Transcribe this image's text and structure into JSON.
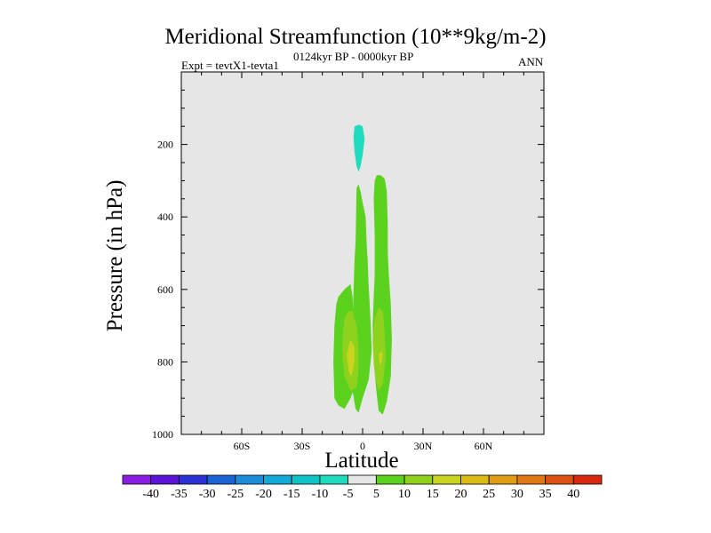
{
  "chart_data": {
    "type": "contour",
    "title": "Meridional Streamfunction (10**9kg/m-2)",
    "subtitle": "0124kyr BP - 0000kyr BP",
    "experiment": "Expt = tevtX1-tevta1",
    "season": "ANN",
    "xlabel": "Latitude",
    "ylabel": "Pressure (in hPa)",
    "xlim": [
      -90,
      90
    ],
    "ylim": [
      1000,
      0
    ],
    "x_ticks": [
      {
        "value": -60,
        "label": "60S"
      },
      {
        "value": -30,
        "label": "30S"
      },
      {
        "value": 0,
        "label": "0"
      },
      {
        "value": 30,
        "label": "30N"
      },
      {
        "value": 60,
        "label": "60N"
      }
    ],
    "y_ticks": [
      {
        "value": 200,
        "label": "200"
      },
      {
        "value": 400,
        "label": "400"
      },
      {
        "value": 600,
        "label": "600"
      },
      {
        "value": 800,
        "label": "800"
      },
      {
        "value": 1000,
        "label": "1000"
      }
    ],
    "background_color": "#e6e6e6",
    "colorbar": {
      "labels": [
        "-40",
        "-35",
        "-30",
        "-25",
        "-20",
        "-15",
        "-10",
        "-5",
        "5",
        "10",
        "15",
        "20",
        "25",
        "30",
        "35",
        "40"
      ],
      "colors": [
        "#8a1ee0",
        "#5a14d8",
        "#2a32d6",
        "#1a64d6",
        "#1a8cd8",
        "#12aad8",
        "#10c4c6",
        "#1edcbc",
        "#e6e6e6",
        "#5ad21e",
        "#8ed21e",
        "#c8d41e",
        "#dcbc14",
        "#e09c14",
        "#e07814",
        "#dc5014",
        "#d82810"
      ]
    },
    "regions": [
      {
        "name": "positive-5-10-upper",
        "color": "#5ad21e",
        "points": [
          [
            -3.5,
            470
          ],
          [
            -3,
            320
          ],
          [
            -2,
            310
          ],
          [
            -1,
            330
          ],
          [
            0,
            360
          ],
          [
            1.5,
            400
          ],
          [
            2,
            470
          ],
          [
            2.5,
            520
          ],
          [
            3,
            590
          ],
          [
            4,
            695
          ],
          [
            4.5,
            770
          ],
          [
            3,
            850
          ],
          [
            0,
            900
          ],
          [
            -2,
            940
          ],
          [
            -3.5,
            930
          ],
          [
            -5,
            880
          ],
          [
            -5.5,
            800
          ],
          [
            -5,
            700
          ],
          [
            -4.5,
            600
          ],
          [
            -4,
            520
          ]
        ]
      },
      {
        "name": "positive-5-10-north",
        "color": "#5ad21e",
        "points": [
          [
            6,
            300
          ],
          [
            7,
            285
          ],
          [
            9,
            285
          ],
          [
            11,
            295
          ],
          [
            12,
            330
          ],
          [
            12.5,
            420
          ],
          [
            12.5,
            500
          ],
          [
            13,
            560
          ],
          [
            14,
            640
          ],
          [
            14.5,
            740
          ],
          [
            14,
            840
          ],
          [
            12,
            910
          ],
          [
            10,
            945
          ],
          [
            8,
            935
          ],
          [
            7,
            890
          ],
          [
            5.5,
            800
          ],
          [
            5,
            700
          ],
          [
            5.5,
            620
          ],
          [
            6,
            560
          ],
          [
            6,
            450
          ],
          [
            5.5,
            350
          ]
        ]
      },
      {
        "name": "positive-5-10-south",
        "color": "#5ad21e",
        "points": [
          [
            -13,
            640
          ],
          [
            -12,
            620
          ],
          [
            -9,
            600
          ],
          [
            -6,
            585
          ],
          [
            -5,
            620
          ],
          [
            -4.5,
            700
          ],
          [
            -5,
            800
          ],
          [
            -4,
            870
          ],
          [
            -6,
            900
          ],
          [
            -9,
            930
          ],
          [
            -12,
            920
          ],
          [
            -14,
            900
          ],
          [
            -14.5,
            800
          ],
          [
            -14,
            700
          ]
        ]
      },
      {
        "name": "positive-10-15-south",
        "color": "#8ed21e",
        "points": [
          [
            -10,
            740
          ],
          [
            -9,
            680
          ],
          [
            -7,
            660
          ],
          [
            -5,
            660
          ],
          [
            -3,
            700
          ],
          [
            -2,
            760
          ],
          [
            -2,
            820
          ],
          [
            -3,
            870
          ],
          [
            -6,
            880
          ],
          [
            -9,
            840
          ],
          [
            -10,
            790
          ]
        ]
      },
      {
        "name": "positive-10-15-north",
        "color": "#8ed21e",
        "points": [
          [
            6,
            680
          ],
          [
            8,
            650
          ],
          [
            10,
            660
          ],
          [
            11,
            720
          ],
          [
            11.5,
            790
          ],
          [
            10,
            860
          ],
          [
            8,
            880
          ],
          [
            6.5,
            850
          ],
          [
            5.5,
            800
          ],
          [
            5,
            740
          ]
        ]
      },
      {
        "name": "positive-15-20-core",
        "color": "#c8d41e",
        "points": [
          [
            -8,
            780
          ],
          [
            -7,
            760
          ],
          [
            -6,
            740
          ],
          [
            -4,
            760
          ],
          [
            -4,
            800
          ],
          [
            -5,
            830
          ],
          [
            -6,
            840
          ],
          [
            -7,
            820
          ]
        ]
      },
      {
        "name": "positive-15-20-north",
        "color": "#c8d41e",
        "points": [
          [
            8,
            780
          ],
          [
            9,
            770
          ],
          [
            10,
            780
          ],
          [
            9.5,
            800
          ],
          [
            8.5,
            810
          ]
        ]
      },
      {
        "name": "negative-5-10-top",
        "color": "#1edcbc",
        "points": [
          [
            -4,
            150
          ],
          [
            -2,
            145
          ],
          [
            0,
            150
          ],
          [
            1,
            185
          ],
          [
            0,
            230
          ],
          [
            -1,
            260
          ],
          [
            -2,
            275
          ],
          [
            -3,
            260
          ],
          [
            -4,
            220
          ],
          [
            -4.5,
            180
          ]
        ]
      }
    ]
  }
}
